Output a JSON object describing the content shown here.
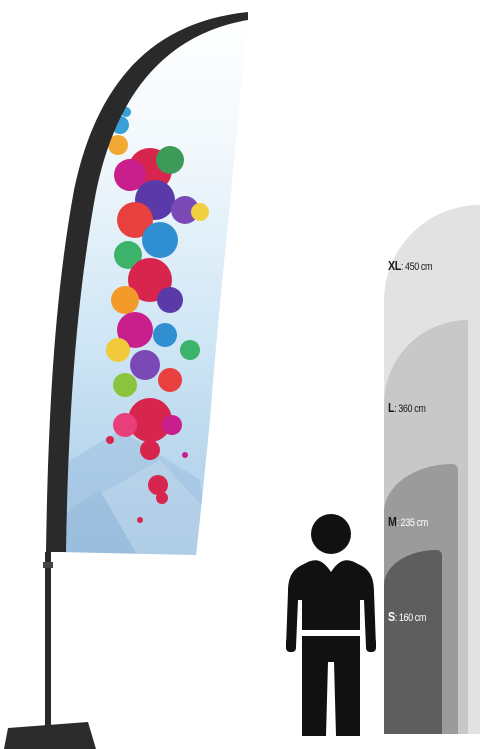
{
  "sizes": [
    {
      "code": "XL",
      "value": ": 450 cm"
    },
    {
      "code": "L",
      "value": ": 360 cm"
    },
    {
      "code": "M",
      "value": ": 235 cm"
    },
    {
      "code": "S",
      "value": ": 160 cm"
    }
  ],
  "icons": {
    "person": "person-silhouette-icon",
    "flag": "beach-flag-icon"
  },
  "colors": {
    "xl": "#e2e2e2",
    "l": "#c8c8c8",
    "m": "#9b9b9b",
    "s": "#5e5e5e",
    "pole": "#2a2a2a"
  }
}
